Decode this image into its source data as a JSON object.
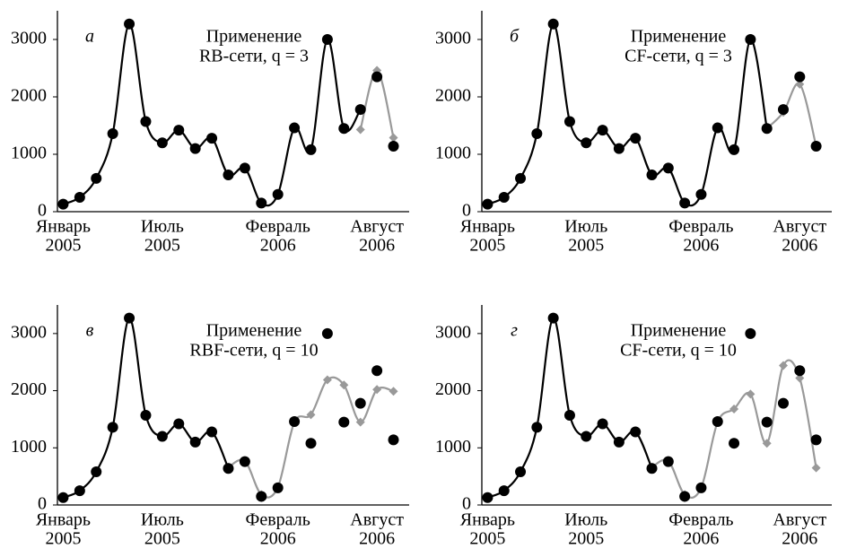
{
  "chart_data": [
    {
      "type": "line",
      "letter": "а",
      "annotation": [
        "Применение",
        "RB-сети, q = 3"
      ],
      "categories": [
        [
          "Январь",
          "2005"
        ],
        null,
        null,
        null,
        null,
        null,
        [
          "Июль",
          "2005"
        ],
        null,
        null,
        null,
        null,
        null,
        null,
        [
          "Февраль",
          "2006"
        ],
        null,
        null,
        null,
        null,
        null,
        [
          "Август",
          "2006"
        ],
        null
      ],
      "ylim": [
        0,
        3500
      ],
      "yticks": [
        0,
        1000,
        2000,
        3000
      ],
      "series": [
        {
          "color": "#000000",
          "marker": "none",
          "line": true,
          "values": [
            130,
            250,
            580,
            1360,
            3270,
            1570,
            1200,
            1420,
            1100,
            1280,
            640,
            760,
            150,
            300,
            1460,
            1080,
            3000,
            1450,
            1780,
            null,
            null
          ]
        },
        {
          "color": "#999999",
          "marker": "diamond",
          "line": true,
          "values": [
            null,
            null,
            null,
            null,
            null,
            null,
            null,
            null,
            null,
            null,
            null,
            null,
            null,
            null,
            null,
            null,
            null,
            null,
            1430,
            2460,
            1290
          ]
        },
        {
          "color": "#000000",
          "marker": "circle",
          "line": false,
          "values": [
            130,
            250,
            580,
            1360,
            3270,
            1570,
            1200,
            1420,
            1100,
            1280,
            640,
            760,
            150,
            300,
            1460,
            1080,
            3000,
            1450,
            1780,
            2350,
            1140
          ]
        }
      ]
    },
    {
      "type": "line",
      "letter": "б",
      "annotation": [
        "Применение",
        "CF-сети, q = 3"
      ],
      "categories": [
        [
          "Январь",
          "2005"
        ],
        null,
        null,
        null,
        null,
        null,
        [
          "Июль",
          "2005"
        ],
        null,
        null,
        null,
        null,
        null,
        null,
        [
          "Февраль",
          "2006"
        ],
        null,
        null,
        null,
        null,
        null,
        [
          "Август",
          "2006"
        ],
        null
      ],
      "ylim": [
        0,
        3500
      ],
      "yticks": [
        0,
        1000,
        2000,
        3000
      ],
      "series": [
        {
          "color": "#000000",
          "marker": "none",
          "line": true,
          "values": [
            130,
            250,
            580,
            1360,
            3270,
            1570,
            1200,
            1420,
            1100,
            1280,
            640,
            760,
            150,
            300,
            1460,
            1080,
            3000,
            1450,
            null,
            null,
            null
          ]
        },
        {
          "color": "#999999",
          "marker": "diamond",
          "line": true,
          "values": [
            null,
            null,
            null,
            null,
            null,
            null,
            null,
            null,
            null,
            null,
            null,
            null,
            null,
            null,
            null,
            null,
            null,
            1450,
            1730,
            2220,
            1140
          ]
        },
        {
          "color": "#000000",
          "marker": "circle",
          "line": false,
          "values": [
            130,
            250,
            580,
            1360,
            3270,
            1570,
            1200,
            1420,
            1100,
            1280,
            640,
            760,
            150,
            300,
            1460,
            1080,
            3000,
            1450,
            1780,
            2350,
            1140
          ]
        }
      ]
    },
    {
      "type": "line",
      "letter": "в",
      "annotation": [
        "Применение",
        "RBF-сети, q = 10"
      ],
      "categories": [
        [
          "Январь",
          "2005"
        ],
        null,
        null,
        null,
        null,
        null,
        [
          "Июль",
          "2005"
        ],
        null,
        null,
        null,
        null,
        null,
        null,
        [
          "Февраль",
          "2006"
        ],
        null,
        null,
        null,
        null,
        null,
        [
          "Август",
          "2006"
        ],
        null
      ],
      "ylim": [
        0,
        3500
      ],
      "yticks": [
        0,
        1000,
        2000,
        3000
      ],
      "series": [
        {
          "color": "#000000",
          "marker": "none",
          "line": true,
          "values": [
            130,
            250,
            580,
            1360,
            3270,
            1570,
            1200,
            1420,
            1100,
            1280,
            640,
            null,
            null,
            null,
            null,
            null,
            null,
            null,
            null,
            null,
            null
          ]
        },
        {
          "color": "#999999",
          "marker": "diamond",
          "line": true,
          "values": [
            null,
            null,
            null,
            null,
            null,
            null,
            null,
            null,
            null,
            null,
            660,
            770,
            180,
            310,
            1450,
            1580,
            2190,
            2100,
            1450,
            2020,
            1990
          ]
        },
        {
          "color": "#000000",
          "marker": "circle",
          "line": false,
          "values": [
            130,
            250,
            580,
            1360,
            3270,
            1570,
            1200,
            1420,
            1100,
            1280,
            640,
            760,
            150,
            300,
            1460,
            1080,
            3000,
            1450,
            1780,
            2350,
            1140
          ]
        }
      ]
    },
    {
      "type": "line",
      "letter": "г",
      "annotation": [
        "Применение",
        "CF-сети, q = 10"
      ],
      "categories": [
        [
          "Январь",
          "2005"
        ],
        null,
        null,
        null,
        null,
        null,
        [
          "Июль",
          "2005"
        ],
        null,
        null,
        null,
        null,
        null,
        null,
        [
          "Февраль",
          "2006"
        ],
        null,
        null,
        null,
        null,
        null,
        [
          "Август",
          "2006"
        ],
        null
      ],
      "ylim": [
        0,
        3500
      ],
      "yticks": [
        0,
        1000,
        2000,
        3000
      ],
      "series": [
        {
          "color": "#000000",
          "marker": "none",
          "line": true,
          "values": [
            130,
            250,
            580,
            1360,
            3270,
            1570,
            1200,
            1420,
            1100,
            1280,
            640,
            null,
            null,
            null,
            null,
            null,
            null,
            null,
            null,
            null,
            null
          ]
        },
        {
          "color": "#999999",
          "marker": "diamond",
          "line": true,
          "values": [
            null,
            null,
            null,
            null,
            null,
            null,
            null,
            null,
            null,
            null,
            660,
            770,
            180,
            300,
            1450,
            1680,
            1940,
            1080,
            2440,
            2220,
            650
          ]
        },
        {
          "color": "#000000",
          "marker": "circle",
          "line": false,
          "values": [
            130,
            250,
            580,
            1360,
            3270,
            1570,
            1200,
            1420,
            1100,
            1280,
            640,
            760,
            150,
            300,
            1460,
            1080,
            3000,
            1450,
            1780,
            2350,
            1140
          ]
        }
      ]
    }
  ]
}
